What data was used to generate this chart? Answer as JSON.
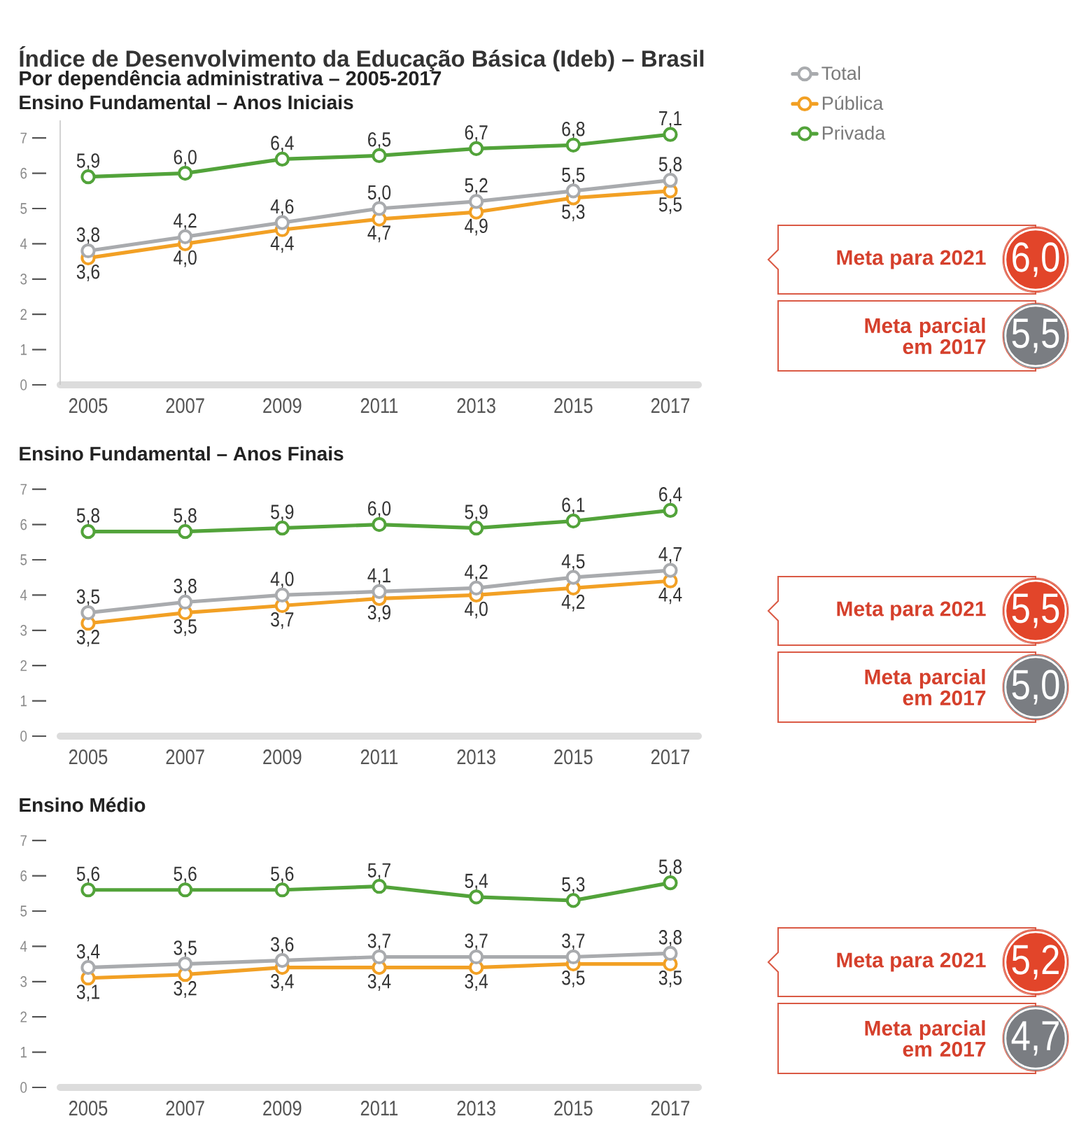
{
  "chart_data": [
    {
      "type": "line",
      "title": "Índice de Desenvolvimento da Educação Básica (Ideb) – Brasil",
      "subtitle": "Por dependência administrativa – 2005-2017",
      "annotations": [
        "Ensino Fundamental – Anos Iniciais",
        "Meta para 2021",
        "6,0",
        "Meta parcial em 2017",
        "5,5"
      ],
      "categories": [
        "2005",
        "2007",
        "2009",
        "2011",
        "2013",
        "2015",
        "2017"
      ],
      "series": [
        {
          "name": "Total",
          "color": "#a9abae",
          "values": [
            3.8,
            4.2,
            4.6,
            5.0,
            5.2,
            5.5,
            5.8
          ],
          "value_labels": [
            "3,8",
            "4,2",
            "4,6",
            "5,0",
            "5,2",
            "5,5",
            "5,8"
          ]
        },
        {
          "name": "Pública",
          "color": "#f2a024",
          "values": [
            3.6,
            4.0,
            4.4,
            4.7,
            4.9,
            5.3,
            5.5
          ],
          "value_labels": [
            "3,6",
            "4,0",
            "4,4",
            "4,7",
            "4,9",
            "5,3",
            "5,5"
          ]
        },
        {
          "name": "Privada",
          "color": "#52a33a",
          "values": [
            5.9,
            6.0,
            6.4,
            6.5,
            6.7,
            6.8,
            7.1
          ],
          "value_labels": [
            "5,9",
            "6,0",
            "6,4",
            "6,5",
            "6,7",
            "6,8",
            "7,1"
          ]
        }
      ],
      "ylim": [
        0,
        7.5
      ],
      "yticks": [
        0,
        1,
        2,
        3,
        4,
        5,
        6,
        7
      ],
      "marker": "circle",
      "legend": "top right"
    },
    {
      "type": "line",
      "title": "Ensino Fundamental – Anos Finais",
      "annotations": [
        "Meta para 2021",
        "5,5",
        "Meta parcial em 2017",
        "5,0"
      ],
      "categories": [
        "2005",
        "2007",
        "2009",
        "2011",
        "2013",
        "2015",
        "2017"
      ],
      "series": [
        {
          "color": "#a9abae",
          "values": [
            3.5,
            3.8,
            4.0,
            4.1,
            4.2,
            4.5,
            4.7
          ],
          "value_labels": [
            "3,5",
            "3,8",
            "4,0",
            "4,1",
            "4,2",
            "4,5",
            "4,7"
          ]
        },
        {
          "color": "#f2a024",
          "values": [
            3.2,
            3.5,
            3.7,
            3.9,
            4.0,
            4.2,
            4.4
          ],
          "value_labels": [
            "3,2",
            "3,5",
            "3,7",
            "3,9",
            "4,0",
            "4,2",
            "4,4"
          ]
        },
        {
          "color": "#52a33a",
          "values": [
            5.8,
            5.8,
            5.9,
            6.0,
            5.9,
            6.1,
            6.4
          ],
          "value_labels": [
            "5,8",
            "5,8",
            "5,9",
            "6,0",
            "5,9",
            "6,1",
            "6,4"
          ]
        }
      ],
      "ylim": [
        0,
        7
      ],
      "yticks": [
        0,
        1,
        2,
        3,
        4,
        5,
        6,
        7
      ],
      "marker": "circle"
    },
    {
      "type": "line",
      "title": "Ensino Médio",
      "annotations": [
        "Meta para 2021",
        "5,2",
        "Meta parcial em 2017",
        "4,7"
      ],
      "categories": [
        "2005",
        "2007",
        "2009",
        "2011",
        "2013",
        "2015",
        "2017"
      ],
      "series": [
        {
          "color": "#a9abae",
          "values": [
            3.4,
            3.5,
            3.6,
            3.7,
            3.7,
            3.7,
            3.8
          ],
          "value_labels": [
            "3,4",
            "3,5",
            "3,6",
            "3,7",
            "3,7",
            "3,7",
            "3,8"
          ]
        },
        {
          "color": "#f2a024",
          "values": [
            3.1,
            3.2,
            3.4,
            3.4,
            3.4,
            3.5,
            3.5
          ],
          "value_labels": [
            "3,1",
            "3,2",
            "3,4",
            "3,4",
            "3,4",
            "3,5",
            "3,5"
          ]
        },
        {
          "color": "#52a33a",
          "values": [
            5.6,
            5.6,
            5.6,
            5.7,
            5.4,
            5.3,
            5.8
          ],
          "value_labels": [
            "5,6",
            "5,6",
            "5,6",
            "5,7",
            "5,4",
            "5,3",
            "5,8"
          ]
        }
      ],
      "ylim": [
        0,
        7
      ],
      "yticks": [
        0,
        1,
        2,
        3,
        4,
        5,
        6,
        7
      ],
      "marker": "circle"
    }
  ]
}
